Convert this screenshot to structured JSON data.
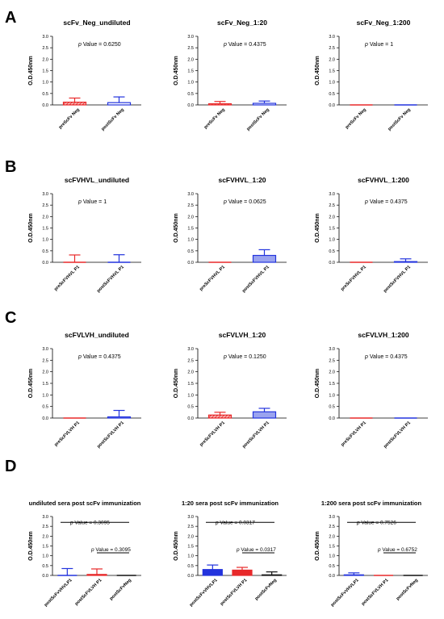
{
  "panel_letters": [
    "A",
    "B",
    "C",
    "D"
  ],
  "chart_data": [
    {
      "type": "bar",
      "panel": "A",
      "title": "scFv_Neg_undiluted",
      "ylabel": "O.D.450nm",
      "ylim": [
        0,
        3.0
      ],
      "ticks": [
        "3.0",
        "2.5",
        "2.0",
        "1.5",
        "1.0",
        "0.5",
        "0.0"
      ],
      "categories": [
        "preScFv Neg",
        "postScFv Neg"
      ],
      "values": [
        0.12,
        0.1
      ],
      "errors": [
        0.18,
        0.25
      ],
      "colors": [
        "#e8292a",
        "#2233dd"
      ],
      "fill": [
        "hatch",
        "outline"
      ],
      "annotation": "p Value = 0.6250"
    },
    {
      "type": "bar",
      "panel": "A",
      "title": "scFv_Neg_1:20",
      "ylabel": "O.D.450nm",
      "ylim": [
        0,
        3.0
      ],
      "ticks": [
        "3.0",
        "2.5",
        "2.0",
        "1.5",
        "1.0",
        "0.5",
        "0.0"
      ],
      "categories": [
        "preScFv Neg",
        "postScFv Neg"
      ],
      "values": [
        0.05,
        0.07
      ],
      "errors": [
        0.1,
        0.1
      ],
      "colors": [
        "#e8292a",
        "#2233dd"
      ],
      "fill": [
        "hatch",
        "outline"
      ],
      "annotation": "p Value = 0.4375"
    },
    {
      "type": "bar",
      "panel": "A",
      "title": "scFv_Neg_1:200",
      "ylabel": "O.D.450nm",
      "ylim": [
        0,
        3.0
      ],
      "ticks": [
        "3.0",
        "2.5",
        "2.0",
        "1.5",
        "1.0",
        "0.5",
        "0.0"
      ],
      "categories": [
        "preScFv Neg",
        "postScFv Neg"
      ],
      "values": [
        0.0,
        0.0
      ],
      "errors": [
        0.0,
        0.0
      ],
      "colors": [
        "#e8292a",
        "#2233dd"
      ],
      "fill": [
        "hatch",
        "outline"
      ],
      "annotation": "p Value = 1"
    },
    {
      "type": "bar",
      "panel": "B",
      "title": "scFVHVL_undiluted",
      "ylabel": "O.D.450nm",
      "ylim": [
        0,
        3.0
      ],
      "ticks": [
        "3.0",
        "2.5",
        "2.0",
        "1.5",
        "1.0",
        "0.5",
        "0.0"
      ],
      "categories": [
        "preScFVHVL P1",
        "postScFVHVL P1"
      ],
      "values": [
        0.0,
        0.0
      ],
      "errors": [
        0.32,
        0.33
      ],
      "colors": [
        "#e8292a",
        "#2233dd"
      ],
      "fill": [
        "hatch",
        "solid-light"
      ],
      "annotation": "p Value = 1"
    },
    {
      "type": "bar",
      "panel": "B",
      "title": "scFVHVL_1:20",
      "ylabel": "O.D.450nm",
      "ylim": [
        0,
        3.0
      ],
      "ticks": [
        "3.0",
        "2.5",
        "2.0",
        "1.5",
        "1.0",
        "0.5",
        "0.0"
      ],
      "categories": [
        "preScFVHVL P1",
        "postScFVHVL P1"
      ],
      "values": [
        0.0,
        0.3
      ],
      "errors": [
        0.0,
        0.25
      ],
      "colors": [
        "#e8292a",
        "#2233dd"
      ],
      "fill": [
        "hatch",
        "solid-light"
      ],
      "annotation": "p Value = 0.0625"
    },
    {
      "type": "bar",
      "panel": "B",
      "title": "scFVHVL_1:200",
      "ylabel": "O.D.450nm",
      "ylim": [
        0,
        3.0
      ],
      "ticks": [
        "3.0",
        "2.5",
        "2.0",
        "1.5",
        "1.0",
        "0.5",
        "0.0"
      ],
      "categories": [
        "preScFVHVL P1",
        "postScFVHVL P1"
      ],
      "values": [
        0.0,
        0.03
      ],
      "errors": [
        0.0,
        0.12
      ],
      "colors": [
        "#e8292a",
        "#2233dd"
      ],
      "fill": [
        "hatch",
        "solid-light"
      ],
      "annotation": "p Value = 0.4375"
    },
    {
      "type": "bar",
      "panel": "C",
      "title": "scFVLVH_undiluted",
      "ylabel": "O.D.450nm",
      "ylim": [
        0,
        3.0
      ],
      "ticks": [
        "3.0",
        "2.5",
        "2.0",
        "1.5",
        "1.0",
        "0.5",
        "0.0"
      ],
      "categories": [
        "preScFVLVH P1",
        "postScFVLVH P1"
      ],
      "values": [
        0.0,
        0.05
      ],
      "errors": [
        0.0,
        0.28
      ],
      "colors": [
        "#e8292a",
        "#2233dd"
      ],
      "fill": [
        "hatch",
        "solid-light"
      ],
      "annotation": "p Value = 0.4375"
    },
    {
      "type": "bar",
      "panel": "C",
      "title": "scFVLVH_1:20",
      "ylabel": "O.D.450nm",
      "ylim": [
        0,
        3.0
      ],
      "ticks": [
        "3.0",
        "2.5",
        "2.0",
        "1.5",
        "1.0",
        "0.5",
        "0.0"
      ],
      "categories": [
        "preScFVLVH P1",
        "postScFVLVH P1"
      ],
      "values": [
        0.13,
        0.27
      ],
      "errors": [
        0.12,
        0.15
      ],
      "colors": [
        "#e8292a",
        "#2233dd"
      ],
      "fill": [
        "hatch",
        "solid-light"
      ],
      "annotation": "p Value = 0.1250"
    },
    {
      "type": "bar",
      "panel": "C",
      "title": "scFVLVH_1:200",
      "ylabel": "O.D.450nm",
      "ylim": [
        0,
        3.0
      ],
      "ticks": [
        "3.0",
        "2.5",
        "2.0",
        "1.5",
        "1.0",
        "0.5",
        "0.0"
      ],
      "categories": [
        "preScFVLVH P1",
        "postScFVLVH P1"
      ],
      "values": [
        0.0,
        0.0
      ],
      "errors": [
        0.0,
        0.0
      ],
      "colors": [
        "#e8292a",
        "#2233dd"
      ],
      "fill": [
        "hatch",
        "solid-light"
      ],
      "annotation": "p Value = 0.4375"
    },
    {
      "type": "bar",
      "panel": "D",
      "title": "undiluted sera post scFv immunization",
      "ylabel": "O.D.450nm",
      "ylim": [
        0,
        3.0
      ],
      "ticks": [
        "3.0",
        "2.5",
        "2.0",
        "1.5",
        "1.0",
        "0.5",
        "0.0"
      ],
      "categories": [
        "postScFvVHVLP1",
        "postScFVLVH P1",
        "postScFvNeg"
      ],
      "values": [
        0.0,
        0.05,
        0.0
      ],
      "errors": [
        0.35,
        0.28,
        0.0
      ],
      "colors": [
        "#2233dd",
        "#e8292a",
        "#111111"
      ],
      "fill": [
        "solid",
        "solid",
        "solid"
      ],
      "annotations": [
        "p Value = 0.3095",
        "p Value = 0.3095"
      ]
    },
    {
      "type": "bar",
      "panel": "D",
      "title": "1:20 sera post scFv immunization",
      "ylabel": "O.D.450nm",
      "ylim": [
        0,
        3.0
      ],
      "ticks": [
        "3.0",
        "2.5",
        "2.0",
        "1.5",
        "1.0",
        "0.5",
        "0.0"
      ],
      "categories": [
        "postScFvVHVLP1",
        "postScFVLVH P1",
        "postScFvNeg"
      ],
      "values": [
        0.3,
        0.27,
        0.03
      ],
      "errors": [
        0.23,
        0.14,
        0.15
      ],
      "colors": [
        "#2233dd",
        "#e8292a",
        "#111111"
      ],
      "fill": [
        "solid",
        "solid",
        "solid"
      ],
      "annotations": [
        "p Value = 0.0317",
        "p Value = 0.0317"
      ]
    },
    {
      "type": "bar",
      "panel": "D",
      "title": "1:200 sera post scFv immunization",
      "ylabel": "O.D.450nm",
      "ylim": [
        0,
        3.0
      ],
      "ticks": [
        "3.0",
        "2.5",
        "2.0",
        "1.5",
        "1.0",
        "0.5",
        "0.0"
      ],
      "categories": [
        "postScFvVHVLP1",
        "postScFVLVH P1",
        "postScFvNeg"
      ],
      "values": [
        0.03,
        0.0,
        0.0
      ],
      "errors": [
        0.1,
        0.0,
        0.0
      ],
      "colors": [
        "#2233dd",
        "#e8292a",
        "#111111"
      ],
      "fill": [
        "solid",
        "solid",
        "solid"
      ],
      "annotations": [
        "p Value = 0.7526",
        "p Value = 0.6752"
      ]
    }
  ]
}
